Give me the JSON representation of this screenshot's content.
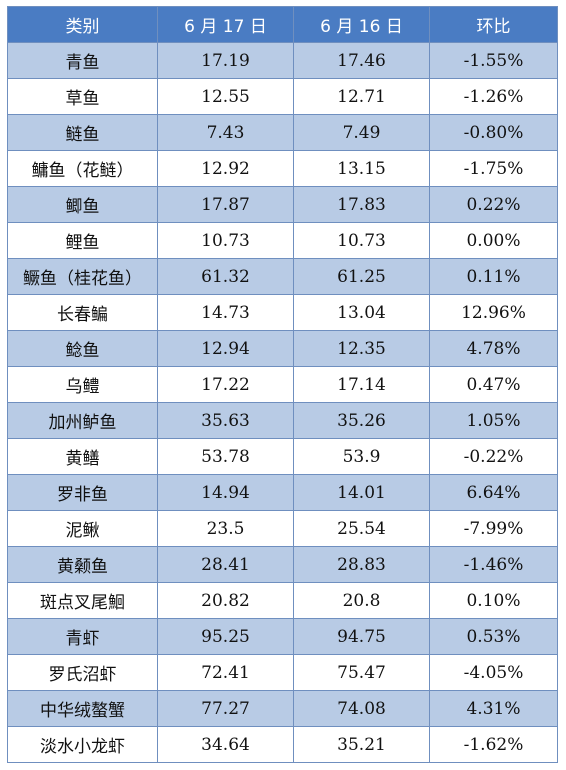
{
  "headers": [
    "类别",
    "6 月 17 日",
    "6 月 16 日",
    "环比"
  ],
  "rows": [
    {
      "name": "青鱼",
      "jun17": "17.19",
      "jun16": "17.46",
      "change": "-1.55%"
    },
    {
      "name": "草鱼",
      "jun17": "12.55",
      "jun16": "12.71",
      "change": "-1.26%"
    },
    {
      "name": "鲢鱼",
      "jun17": "7.43",
      "jun16": "7.49",
      "change": "-0.80%"
    },
    {
      "name": "鳙鱼（花鲢）",
      "jun17": "12.92",
      "jun16": "13.15",
      "change": "-1.75%"
    },
    {
      "name": "鲫鱼",
      "jun17": "17.87",
      "jun16": "17.83",
      "change": "0.22%"
    },
    {
      "name": "鲤鱼",
      "jun17": "10.73",
      "jun16": "10.73",
      "change": "0.00%"
    },
    {
      "name": "鳜鱼（桂花鱼）",
      "jun17": "61.32",
      "jun16": "61.25",
      "change": "0.11%"
    },
    {
      "name": "长春鳊",
      "jun17": "14.73",
      "jun16": "13.04",
      "change": "12.96%"
    },
    {
      "name": "鲶鱼",
      "jun17": "12.94",
      "jun16": "12.35",
      "change": "4.78%"
    },
    {
      "name": "乌鳢",
      "jun17": "17.22",
      "jun16": "17.14",
      "change": "0.47%"
    },
    {
      "name": "加州鲈鱼",
      "jun17": "35.63",
      "jun16": "35.26",
      "change": "1.05%"
    },
    {
      "name": "黄鳝",
      "jun17": "53.78",
      "jun16": "53.9",
      "change": "-0.22%"
    },
    {
      "name": "罗非鱼",
      "jun17": "14.94",
      "jun16": "14.01",
      "change": "6.64%"
    },
    {
      "name": "泥鳅",
      "jun17": "23.5",
      "jun16": "25.54",
      "change": "-7.99%"
    },
    {
      "name": "黄颡鱼",
      "jun17": "28.41",
      "jun16": "28.83",
      "change": "-1.46%"
    },
    {
      "name": "斑点叉尾鮰",
      "jun17": "20.82",
      "jun16": "20.8",
      "change": "0.10%"
    },
    {
      "name": "青虾",
      "jun17": "95.25",
      "jun16": "94.75",
      "change": "0.53%"
    },
    {
      "name": "罗氏沼虾",
      "jun17": "72.41",
      "jun16": "75.47",
      "change": "-4.05%"
    },
    {
      "name": "中华绒螯蟹",
      "jun17": "77.27",
      "jun16": "74.08",
      "change": "4.31%"
    },
    {
      "name": "淡水小龙虾",
      "jun17": "34.64",
      "jun16": "35.21",
      "change": "-1.62%"
    }
  ]
}
